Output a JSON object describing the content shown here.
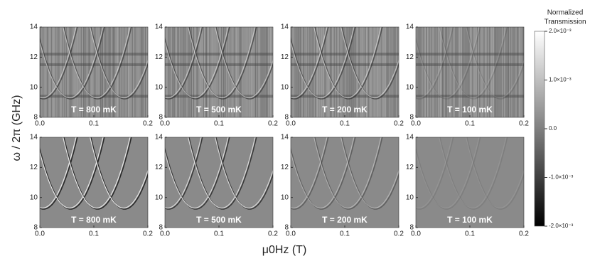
{
  "figure": {
    "y_label": "ω / 2π (GHz)",
    "x_label": "μ0Hz (T)"
  },
  "colorbar": {
    "title": [
      "Normalized",
      "Transmission"
    ],
    "lim": [
      -0.002,
      0.002
    ],
    "ticks": [
      {
        "value": -0.002,
        "label": "-2.0×10⁻³"
      },
      {
        "value": -0.001,
        "label": "-1.0×10⁻³"
      },
      {
        "value": 0,
        "label": "0.0"
      },
      {
        "value": 0.001,
        "label": "1.0×10⁻³"
      },
      {
        "value": 0.002,
        "label": "2.0×10⁻³"
      }
    ]
  },
  "chart_data": [
    {
      "type": "heatmap",
      "annotation": "T = 800 mK",
      "xlim": [
        0,
        0.2
      ],
      "xticks": [
        {
          "value": 0,
          "label": "0.0"
        },
        0.1,
        0.2
      ],
      "ylim": [
        8,
        14
      ],
      "yticks": [
        8,
        10,
        12,
        14
      ]
    },
    {
      "type": "heatmap",
      "annotation": "T = 500 mK",
      "xlim": [
        0,
        0.2
      ],
      "xticks": [
        {
          "value": 0,
          "label": "0.0"
        },
        0.1,
        0.2
      ],
      "ylim": [
        8,
        14
      ],
      "yticks": [
        8,
        10,
        12,
        14
      ]
    },
    {
      "type": "heatmap",
      "annotation": "T = 200 mK",
      "xlim": [
        0,
        0.2
      ],
      "xticks": [
        {
          "value": 0,
          "label": "0.0"
        },
        0.1,
        0.2
      ],
      "ylim": [
        8,
        14
      ],
      "yticks": [
        8,
        10,
        12,
        14
      ]
    },
    {
      "type": "heatmap",
      "annotation": "T = 100 mK",
      "xlim": [
        0,
        0.2
      ],
      "xticks": [
        {
          "value": 0,
          "label": "0.0"
        },
        0.1,
        0.2
      ],
      "ylim": [
        8,
        14
      ],
      "yticks": [
        8,
        10,
        12,
        14
      ]
    },
    {
      "type": "heatmap",
      "annotation": "T = 800 mK",
      "xlim": [
        0,
        0.2
      ],
      "xticks": [
        {
          "value": 0,
          "label": "0.0"
        },
        0.1,
        0.2
      ],
      "ylim": [
        8,
        14
      ],
      "yticks": [
        8,
        10,
        12,
        14
      ]
    },
    {
      "type": "heatmap",
      "annotation": "T = 500 mK",
      "xlim": [
        0,
        0.2
      ],
      "xticks": [
        {
          "value": 0,
          "label": "0.0"
        },
        0.1,
        0.2
      ],
      "ylim": [
        8,
        14
      ],
      "yticks": [
        8,
        10,
        12,
        14
      ]
    },
    {
      "type": "heatmap",
      "annotation": "T = 200 mK",
      "xlim": [
        0,
        0.2
      ],
      "xticks": [
        {
          "value": 0,
          "label": "0.0"
        },
        0.1,
        0.2
      ],
      "ylim": [
        8,
        14
      ],
      "yticks": [
        8,
        10,
        12,
        14
      ]
    },
    {
      "type": "heatmap",
      "annotation": "T = 100 mK",
      "xlim": [
        0,
        0.2
      ],
      "xticks": [
        {
          "value": 0,
          "label": "0.0"
        },
        0.1,
        0.2
      ],
      "ylim": [
        8,
        14
      ],
      "yticks": [
        8,
        10,
        12,
        14
      ]
    }
  ]
}
